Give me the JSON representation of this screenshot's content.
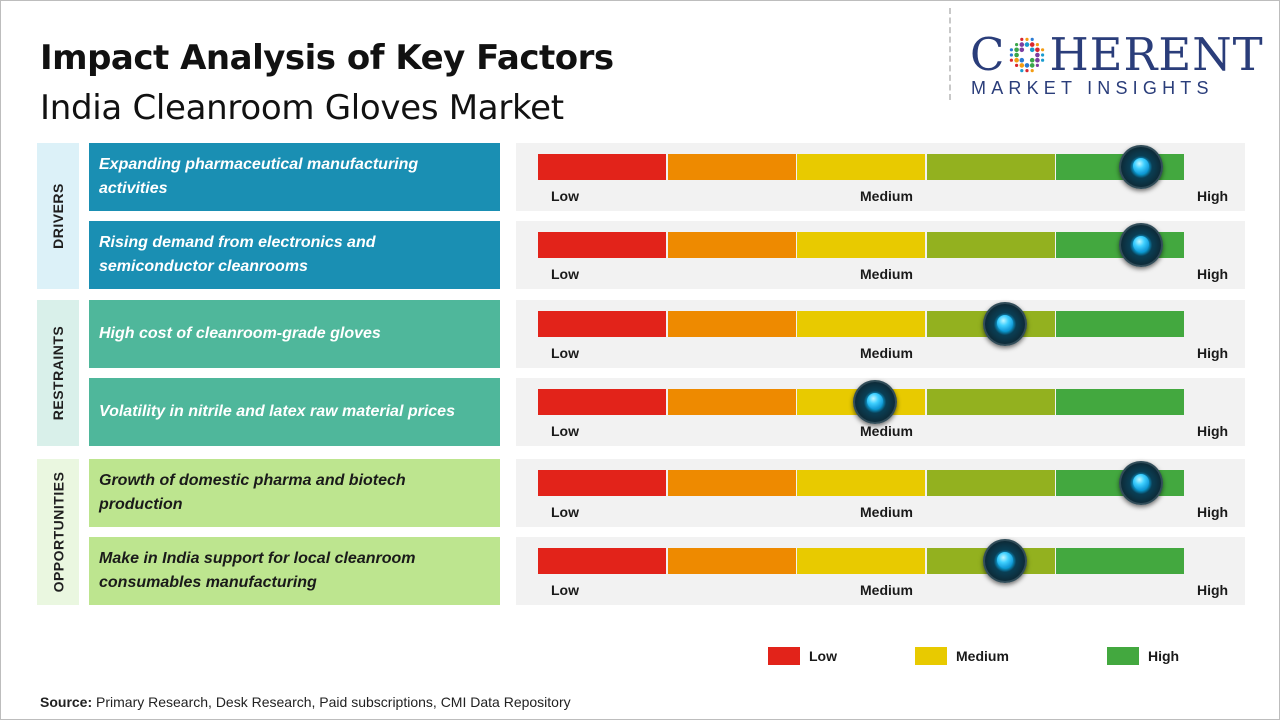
{
  "header": {
    "title": "Impact Analysis of Key Factors",
    "subtitle": "India Cleanroom Gloves Market"
  },
  "logo": {
    "main_prefix": "C",
    "main_suffix": "HERENT",
    "sub": "MARKET INSIGHTS"
  },
  "colors": {
    "drivers_tab": "#dcf1f8",
    "drivers_box": "#1a8fb3",
    "restraints_tab": "#d9f0ea",
    "restraints_box": "#4fb79b",
    "opportunities_tab": "#eaf7e0",
    "opportunities_box": "#bde58f",
    "seg_red": "#e2231a",
    "seg_orange": "#ee8a00",
    "seg_yellow": "#e8ca00",
    "seg_olive": "#93b11f",
    "seg_green": "#43a83f"
  },
  "chart_data": {
    "type": "gauge",
    "scale": [
      "Low",
      "Medium",
      "High"
    ],
    "groups": [
      {
        "name": "DRIVERS",
        "factors": [
          {
            "label": "Expanding pharmaceutical manufacturing activities",
            "impact": 0.93
          },
          {
            "label": "Rising demand from electronics and semiconductor cleanrooms",
            "impact": 0.93
          }
        ]
      },
      {
        "name": "RESTRAINTS",
        "factors": [
          {
            "label": "High cost of cleanroom-grade gloves",
            "impact": 0.72
          },
          {
            "label": "Volatility in nitrile and latex raw material prices",
            "impact": 0.52
          }
        ]
      },
      {
        "name": "OPPORTUNITIES",
        "factors": [
          {
            "label": "Growth of domestic pharma and biotech production",
            "impact": 0.93
          },
          {
            "label": "Make in India support for local cleanroom consumables manufacturing",
            "impact": 0.72
          }
        ]
      }
    ],
    "legend": [
      {
        "label": "Low",
        "color": "#e2231a"
      },
      {
        "label": "Medium",
        "color": "#e8ca00"
      },
      {
        "label": "High",
        "color": "#43a83f"
      }
    ]
  },
  "source": {
    "label": "Source:",
    "text": "Primary Research, Desk Research, Paid subscriptions, CMI Data Repository"
  }
}
